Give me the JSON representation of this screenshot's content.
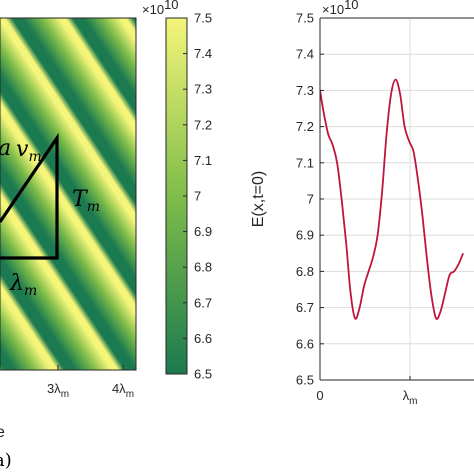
{
  "chart_data": [
    {
      "type": "heatmap",
      "pattern": "diagonal stripes",
      "colormap": "summer",
      "color_low": "#1b7a4f",
      "color_mid": "#7fbd4a",
      "color_high": "#f5f57a",
      "x_tick_labels": [
        "3λ",
        "4λ"
      ],
      "x_tick_sub": "m",
      "colorbar": {
        "exponent_label": "×10",
        "exponent_power": "10",
        "min": 6.5,
        "max": 7.5,
        "ticks": [
          6.5,
          6.6,
          6.7,
          6.8,
          6.9,
          7,
          7.1,
          7.2,
          7.3,
          7.4,
          7.5
        ],
        "tick_labels": [
          "6.5",
          "6.6",
          "6.7",
          "6.8",
          "6.9",
          "7",
          "7.1",
          "7.2",
          "7.3",
          "7.4",
          "7.5"
        ]
      },
      "annotations": {
        "velocity": "v",
        "velocity_sub": "m",
        "period": "T",
        "period_sub": "m",
        "wavelength": "λ",
        "wavelength_sub": "m",
        "cut_left_glyph": "a"
      },
      "cut_xlabel": "e",
      "panel_label_fragment": "a)"
    },
    {
      "type": "line",
      "ylabel": "E(x,t=0)",
      "y_exponent_label": "×10",
      "y_exponent_power": "10",
      "ylim": [
        6.5,
        7.5
      ],
      "y_ticks": [
        6.5,
        6.6,
        6.7,
        6.8,
        6.9,
        7,
        7.1,
        7.2,
        7.3,
        7.4,
        7.5
      ],
      "y_tick_labels": [
        "6.5",
        "6.6",
        "6.7",
        "6.8",
        "6.9",
        "7",
        "7.1",
        "7.2",
        "7.3",
        "7.4",
        "7.5"
      ],
      "x_tick_labels": [
        "0",
        "λ"
      ],
      "x_tick_sub": "m",
      "grid": true,
      "line_color": "#c0143c",
      "series": [
        {
          "x": [
            0,
            0.04,
            0.09,
            0.14,
            0.19,
            0.24,
            0.29,
            0.34,
            0.39,
            0.44,
            0.49,
            0.54,
            0.59,
            0.64,
            0.69,
            0.74,
            0.79,
            0.84,
            0.89,
            0.94,
            0.99,
            1.04,
            1.09,
            1.14,
            1.19,
            1.24,
            1.29,
            1.34,
            1.39,
            1.44,
            1.49,
            1.54,
            1.59
          ],
          "values": [
            7.3,
            7.24,
            7.18,
            7.15,
            7.1,
            7.0,
            6.88,
            6.74,
            6.67,
            6.7,
            6.76,
            6.8,
            6.84,
            6.9,
            7.02,
            7.18,
            7.29,
            7.33,
            7.29,
            7.2,
            7.16,
            7.13,
            7.05,
            6.95,
            6.83,
            6.73,
            6.67,
            6.69,
            6.74,
            6.79,
            6.8,
            6.82,
            6.85
          ]
        }
      ]
    }
  ]
}
